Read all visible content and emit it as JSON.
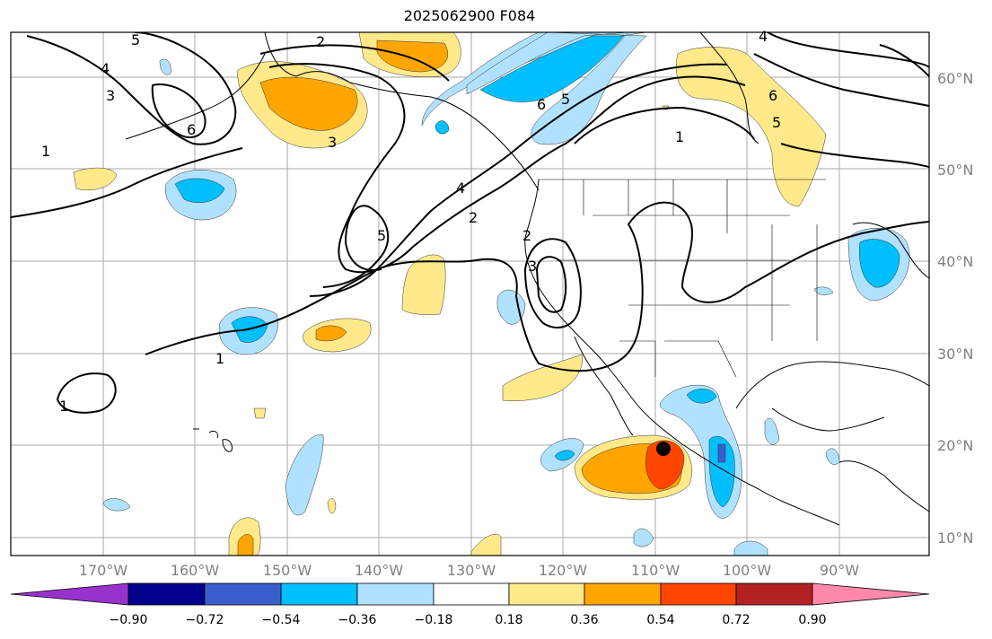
{
  "title": "2025062900 F084",
  "map": {
    "lat_labels": [
      "60°N",
      "50°N",
      "40°N",
      "30°N",
      "20°N",
      "10°N"
    ],
    "lon_labels": [
      "170°W",
      "160°W",
      "150°W",
      "140°W",
      "130°W",
      "120°W",
      "110°W",
      "100°W",
      "90°W"
    ],
    "contour_labels": [
      "1",
      "1",
      "1",
      "1",
      "2",
      "2",
      "2",
      "3",
      "3",
      "3",
      "4",
      "4",
      "4",
      "5",
      "5",
      "5",
      "5",
      "6",
      "6",
      "6"
    ],
    "colors": {
      "frame": "#000000",
      "grid": "#a9a9a9",
      "axis_label": "#7f7f7f",
      "ocean": "#ffffff"
    }
  },
  "colorbar": {
    "tick_labels": [
      "−0.90",
      "−0.72",
      "−0.54",
      "−0.36",
      "−0.18",
      "0.18",
      "0.36",
      "0.54",
      "0.72",
      "0.90"
    ],
    "colors": [
      "#9932cc",
      "#00008b",
      "#3a5fcd",
      "#00bfff",
      "#b0e2ff",
      "#ffffff",
      "#ffe98a",
      "#ffa500",
      "#ff4500",
      "#b22222",
      "#ff88aa"
    ]
  }
}
